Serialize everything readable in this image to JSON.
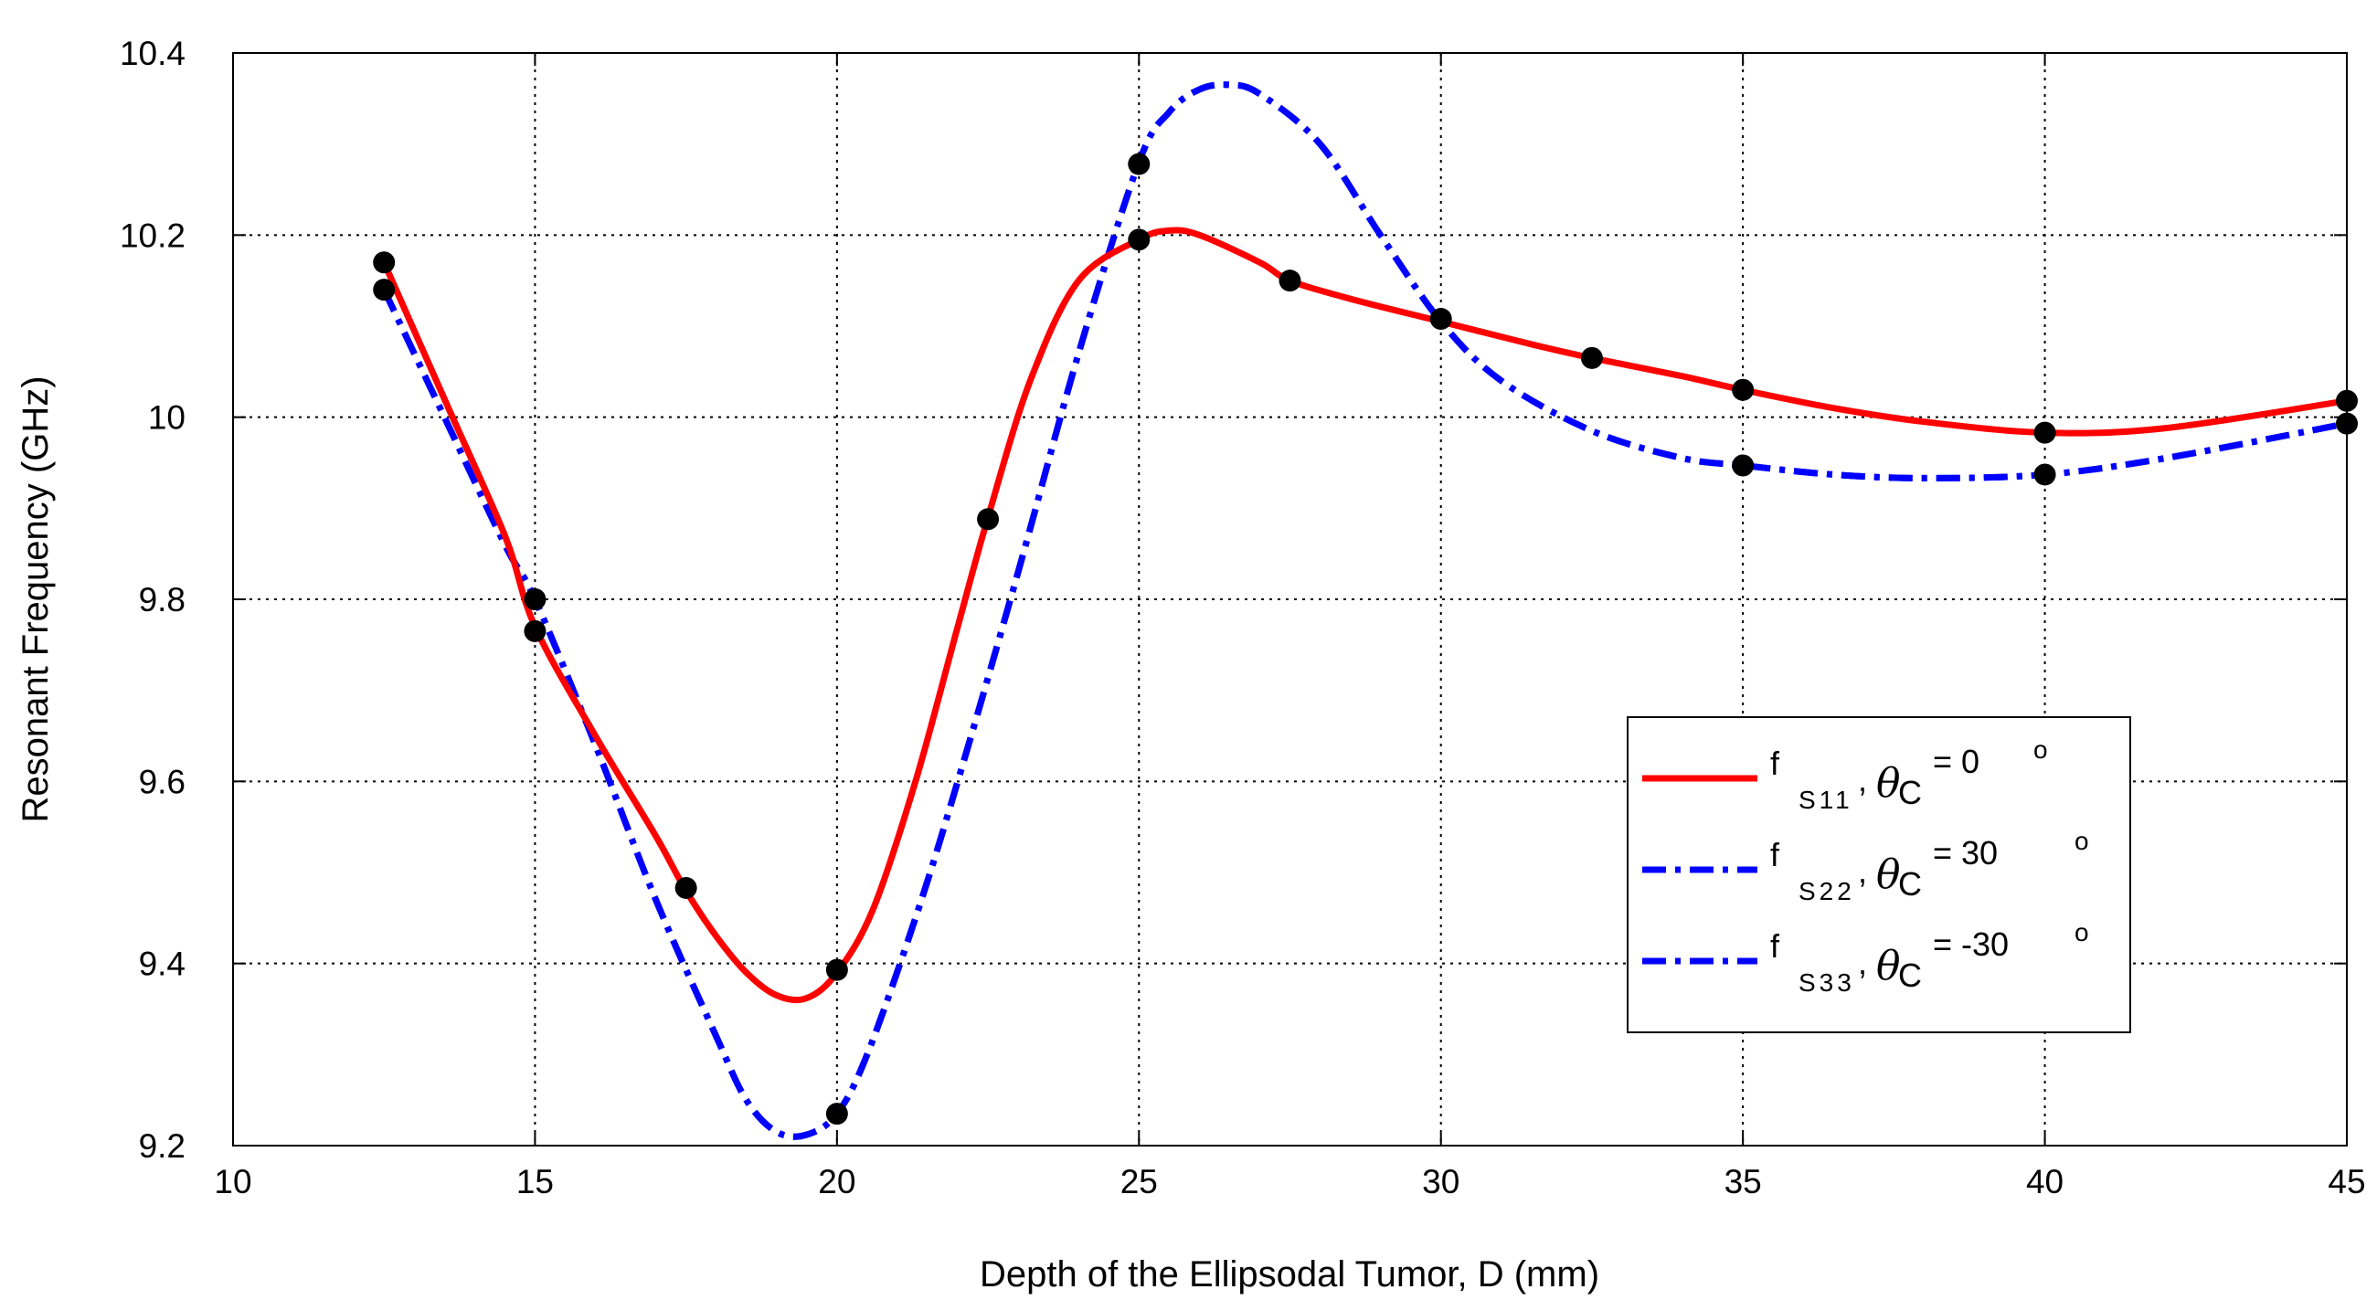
{
  "chart_data": {
    "type": "line",
    "title": "",
    "xlabel": "Depth of the Ellipsodal Tumor, D (mm)",
    "ylabel": "Resonant Frequency (GHz)",
    "xlim": [
      10,
      45
    ],
    "ylim": [
      9.2,
      10.4
    ],
    "xticks": [
      10,
      15,
      20,
      25,
      30,
      35,
      40,
      45
    ],
    "yticks": [
      9.2,
      9.4,
      9.6,
      9.8,
      10,
      10.2,
      10.4
    ],
    "ytick_labels": [
      "9.2",
      "9.4",
      "9.6",
      "9.8",
      "10",
      "10.2",
      "10.4"
    ],
    "grid": true,
    "legend_position": "lower-right",
    "series": [
      {
        "name": "f S11, θC = 0 °",
        "label_f": "f",
        "label_sub": "S11",
        "label_theta": "θ",
        "label_theta_sub": "C",
        "label_eq": "= 0",
        "label_deg": "o",
        "color": "#ff0000",
        "style": "solid",
        "x": [
          12.5,
          13.5,
          14.5,
          15.0,
          16.0,
          17.0,
          17.5,
          18.0,
          18.5,
          19.0,
          19.5,
          20.0,
          20.6,
          21.3,
          22.0,
          22.5,
          23.2,
          24.0,
          25.0,
          25.5,
          26.0,
          27.0,
          27.5,
          28.5,
          30.0,
          31.5,
          32.5,
          34.0,
          35.0,
          36.5,
          38.0,
          40.0,
          42.0,
          45.0
        ],
        "y": [
          10.17,
          10.02,
          9.87,
          9.77,
          9.65,
          9.54,
          9.48,
          9.43,
          9.39,
          9.365,
          9.362,
          9.39,
          9.46,
          9.6,
          9.77,
          9.89,
          10.04,
          10.15,
          10.195,
          10.205,
          10.2,
          10.17,
          10.15,
          10.13,
          10.105,
          10.08,
          10.065,
          10.045,
          10.03,
          10.01,
          9.995,
          9.983,
          9.988,
          10.018
        ]
      },
      {
        "name": "f S22, θC = 30 °",
        "label_f": "f",
        "label_sub": "S22",
        "label_theta": "θ",
        "label_theta_sub": "C",
        "label_eq": "= 30",
        "label_deg": "o",
        "color": "#0000ff",
        "style": "dashdot",
        "x": [
          12.5,
          13.5,
          14.5,
          15.0,
          16.0,
          17.0,
          18.0,
          18.5,
          19.0,
          19.5,
          20.0,
          20.5,
          21.3,
          22.0,
          23.0,
          24.0,
          25.0,
          25.5,
          26.0,
          26.5,
          27.0,
          28.0,
          29.0,
          30.0,
          31.0,
          32.5,
          34.0,
          35.0,
          36.5,
          38.0,
          40.0,
          42.0,
          45.0
        ],
        "y": [
          10.14,
          10.0,
          9.86,
          9.8,
          9.64,
          9.47,
          9.32,
          9.25,
          9.215,
          9.212,
          9.235,
          9.3,
          9.45,
          9.6,
          9.83,
          10.07,
          10.28,
          10.335,
          10.36,
          10.365,
          10.355,
          10.3,
          10.2,
          10.105,
          10.04,
          9.985,
          9.955,
          9.947,
          9.937,
          9.933,
          9.937,
          9.955,
          9.993
        ]
      },
      {
        "name": "f S33, θC = -30 °",
        "label_f": "f",
        "label_sub": "S33",
        "label_theta": "θ",
        "label_theta_sub": "C",
        "label_eq": "= -30",
        "label_deg": "o",
        "color": "#0000ff",
        "style": "dashdot",
        "x": [
          12.5,
          13.5,
          14.5,
          15.0,
          16.0,
          17.0,
          18.0,
          18.5,
          19.0,
          19.5,
          20.0,
          20.5,
          21.3,
          22.0,
          23.0,
          24.0,
          25.0,
          25.5,
          26.0,
          26.5,
          27.0,
          28.0,
          29.0,
          30.0,
          31.0,
          32.5,
          34.0,
          35.0,
          36.5,
          38.0,
          40.0,
          42.0,
          45.0
        ],
        "y": [
          10.14,
          10.0,
          9.86,
          9.8,
          9.64,
          9.47,
          9.32,
          9.25,
          9.215,
          9.212,
          9.235,
          9.3,
          9.45,
          9.6,
          9.83,
          10.07,
          10.28,
          10.335,
          10.36,
          10.365,
          10.355,
          10.3,
          10.2,
          10.105,
          10.04,
          9.985,
          9.955,
          9.947,
          9.937,
          9.933,
          9.937,
          9.955,
          9.993
        ]
      }
    ],
    "markers": [
      {
        "x": 12.5,
        "y": 10.17
      },
      {
        "x": 12.5,
        "y": 10.14
      },
      {
        "x": 15.0,
        "y": 9.8
      },
      {
        "x": 15.0,
        "y": 9.765
      },
      {
        "x": 17.5,
        "y": 9.483
      },
      {
        "x": 20.0,
        "y": 9.393
      },
      {
        "x": 20.0,
        "y": 9.235
      },
      {
        "x": 22.5,
        "y": 9.888
      },
      {
        "x": 25.0,
        "y": 10.278
      },
      {
        "x": 25.0,
        "y": 10.195
      },
      {
        "x": 27.5,
        "y": 10.15
      },
      {
        "x": 30.0,
        "y": 10.108
      },
      {
        "x": 32.5,
        "y": 10.065
      },
      {
        "x": 35.0,
        "y": 10.03
      },
      {
        "x": 35.0,
        "y": 9.947
      },
      {
        "x": 40.0,
        "y": 9.983
      },
      {
        "x": 40.0,
        "y": 9.937
      },
      {
        "x": 45.0,
        "y": 10.018
      },
      {
        "x": 45.0,
        "y": 9.993
      }
    ]
  }
}
